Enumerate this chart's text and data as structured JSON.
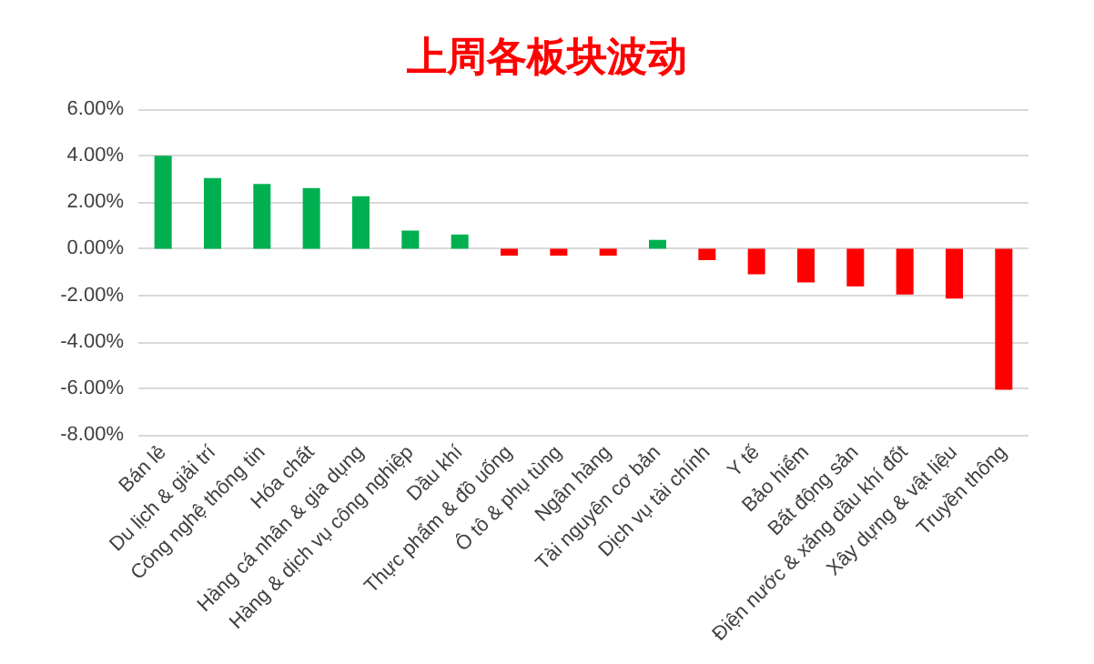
{
  "chart_data": {
    "type": "bar",
    "title": "上周各板块波动",
    "categories": [
      "Bán lẻ",
      "Du lịch & giải trí",
      "Công nghệ thông tin",
      "Hóa chất",
      "Hàng cá nhân & gia dụng",
      "Hàng & dịch vụ công nghiệp",
      "Dầu khí",
      "Thực phẩm & đồ uống",
      "Ô tô & phụ tùng",
      "Ngân hàng",
      "Tài nguyên cơ bản",
      "Dịch vụ tài chính",
      "Y tế",
      "Bảo hiểm",
      "Bất động sản",
      "Điện nước & xăng dầu khí đốt",
      "Xây dựng & vật liệu",
      "Truyền thông"
    ],
    "values": [
      4.0,
      3.04,
      2.78,
      2.61,
      2.26,
      0.78,
      0.61,
      -0.3,
      -0.3,
      -0.3,
      0.38,
      -0.49,
      -1.1,
      -1.45,
      -1.62,
      -1.97,
      -2.14,
      -6.06
    ],
    "colors": [
      "#00b050",
      "#00b050",
      "#00b050",
      "#00b050",
      "#00b050",
      "#00b050",
      "#00b050",
      "#ff0000",
      "#ff0000",
      "#ff0000",
      "#00b050",
      "#ff0000",
      "#ff0000",
      "#ff0000",
      "#ff0000",
      "#ff0000",
      "#ff0000",
      "#ff0000"
    ],
    "ylim": [
      -8,
      6
    ],
    "yticks": [
      {
        "value": -8,
        "label": "-8.00%"
      },
      {
        "value": -6,
        "label": "-6.00%"
      },
      {
        "value": -4,
        "label": "-4.00%"
      },
      {
        "value": -2,
        "label": "-2.00%"
      },
      {
        "value": 0,
        "label": "0.00%"
      },
      {
        "value": 2,
        "label": "2.00%"
      },
      {
        "value": 4,
        "label": "4.00%"
      },
      {
        "value": 6,
        "label": "6.00%"
      }
    ],
    "grid": "y"
  }
}
